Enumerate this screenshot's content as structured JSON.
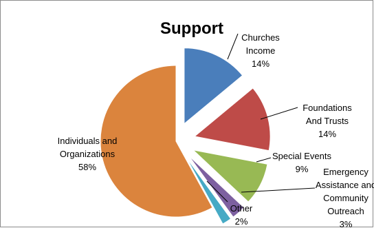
{
  "chart_data": {
    "type": "pie",
    "title": "Support",
    "exploded": true,
    "series": [
      {
        "slices": [
          {
            "label": [
              "Churches",
              "Income"
            ],
            "value": 14,
            "value_label": "14%",
            "color": "#4a7ebb"
          },
          {
            "label": [
              "Foundations",
              "And Trusts"
            ],
            "value": 14,
            "value_label": "14%",
            "color": "#be4b48"
          },
          {
            "label": [
              "Special Events"
            ],
            "value": 9,
            "value_label": "9%",
            "color": "#98b954"
          },
          {
            "label": [
              "Emergency",
              "Assistance and",
              "Community",
              "Outreach"
            ],
            "value": 3,
            "value_label": "3%",
            "color": "#7d60a0"
          },
          {
            "label": [
              "Other"
            ],
            "value": 2,
            "value_label": "2%",
            "color": "#46aac5"
          },
          {
            "label": [
              "Individuals and",
              "Organizations"
            ],
            "value": 58,
            "value_label": "58%",
            "color": "#db843d"
          }
        ]
      }
    ]
  }
}
